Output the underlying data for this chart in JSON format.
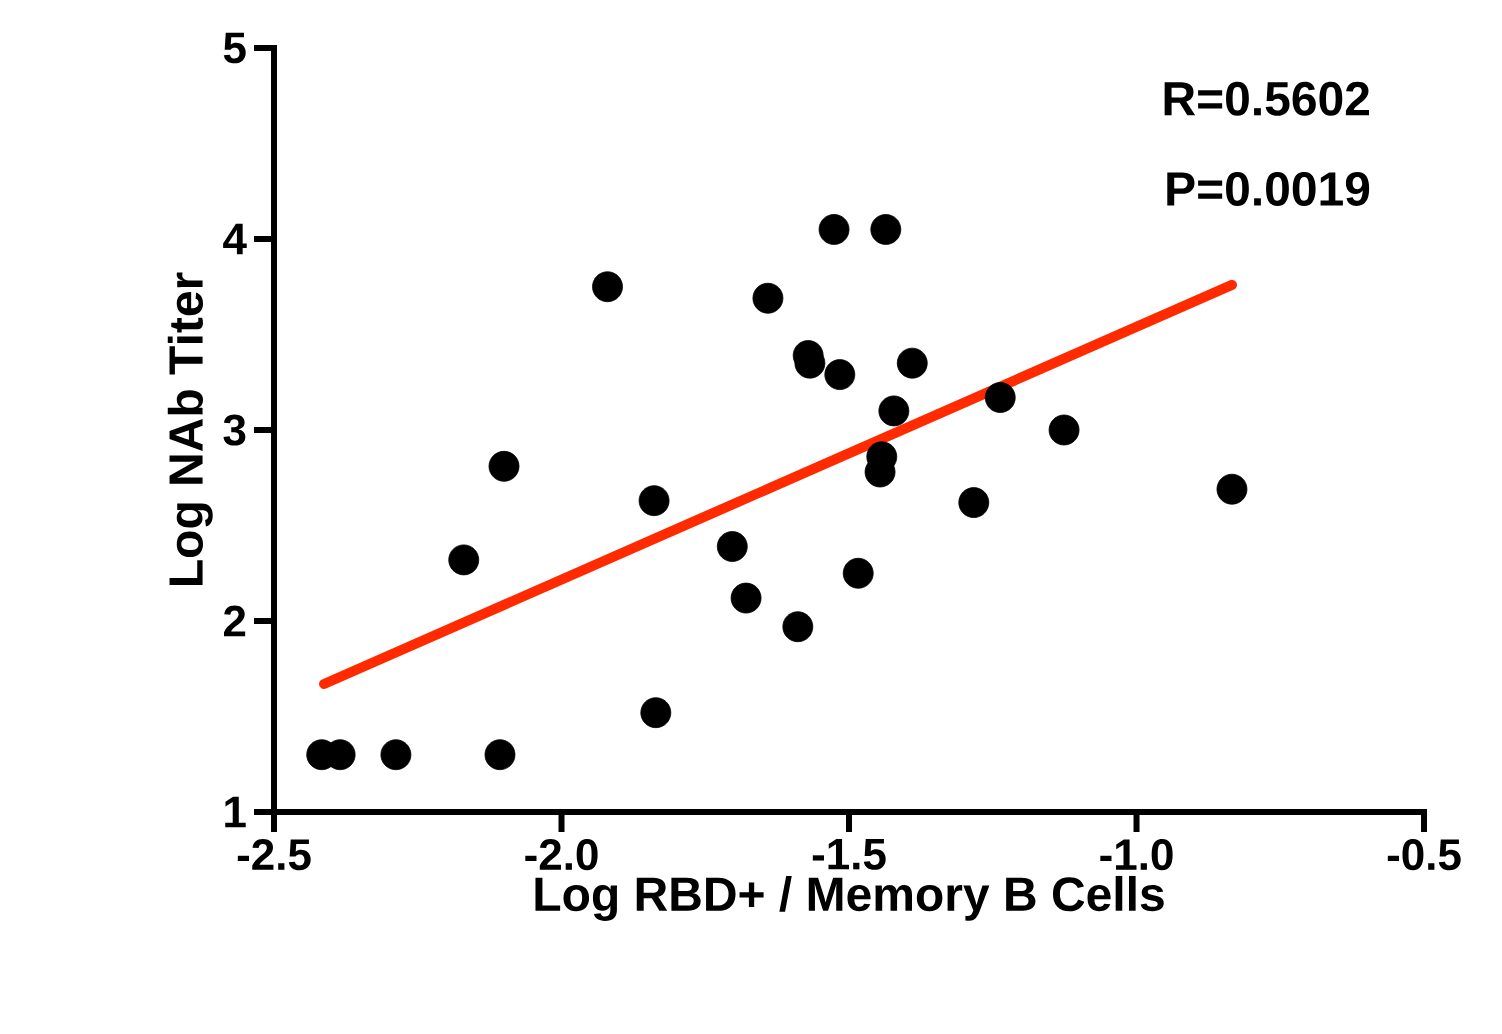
{
  "chart_data": {
    "type": "scatter",
    "xlabel": "Log RBD+ / Memory B Cells",
    "ylabel": "Log NAb Titer",
    "annotations": [
      "R=0.5602",
      "P=0.0019"
    ],
    "xlim": [
      -2.5,
      -0.5
    ],
    "ylim": [
      1,
      5
    ],
    "xticks": [
      {
        "value": -2.5,
        "label": "-2.5"
      },
      {
        "value": -2.0,
        "label": "-2.0"
      },
      {
        "value": -1.5,
        "label": "-1.5"
      },
      {
        "value": -1.0,
        "label": "-1.0"
      },
      {
        "value": -0.5,
        "label": "-0.5"
      }
    ],
    "yticks": [
      1,
      2,
      3,
      4,
      5
    ],
    "grid": false,
    "series": [
      {
        "marker": "circle",
        "color": "#000000",
        "x": [
          -2.417,
          -2.385,
          -2.288,
          -2.107,
          -2.17,
          -2.1,
          -1.92,
          -1.839,
          -1.836,
          -1.703,
          -1.679,
          -1.589,
          -1.641,
          -1.571,
          -1.568,
          -1.516,
          -1.526,
          -1.436,
          -1.39,
          -1.422,
          -1.443,
          -1.446,
          -1.484,
          -1.283,
          -1.237,
          -1.126,
          -0.834
        ],
        "values": [
          1.3,
          1.3,
          1.3,
          1.3,
          2.32,
          2.81,
          3.75,
          2.63,
          1.52,
          2.39,
          2.12,
          1.97,
          3.69,
          3.39,
          3.35,
          3.29,
          4.05,
          4.05,
          3.35,
          3.1,
          2.86,
          2.78,
          2.25,
          2.62,
          3.17,
          3.0,
          2.69
        ]
      },
      {
        "type": "line",
        "marker": "none",
        "color": "#ff2a00",
        "x": [
          -2.413,
          -0.834
        ],
        "values": [
          1.67,
          3.76
        ]
      }
    ]
  }
}
